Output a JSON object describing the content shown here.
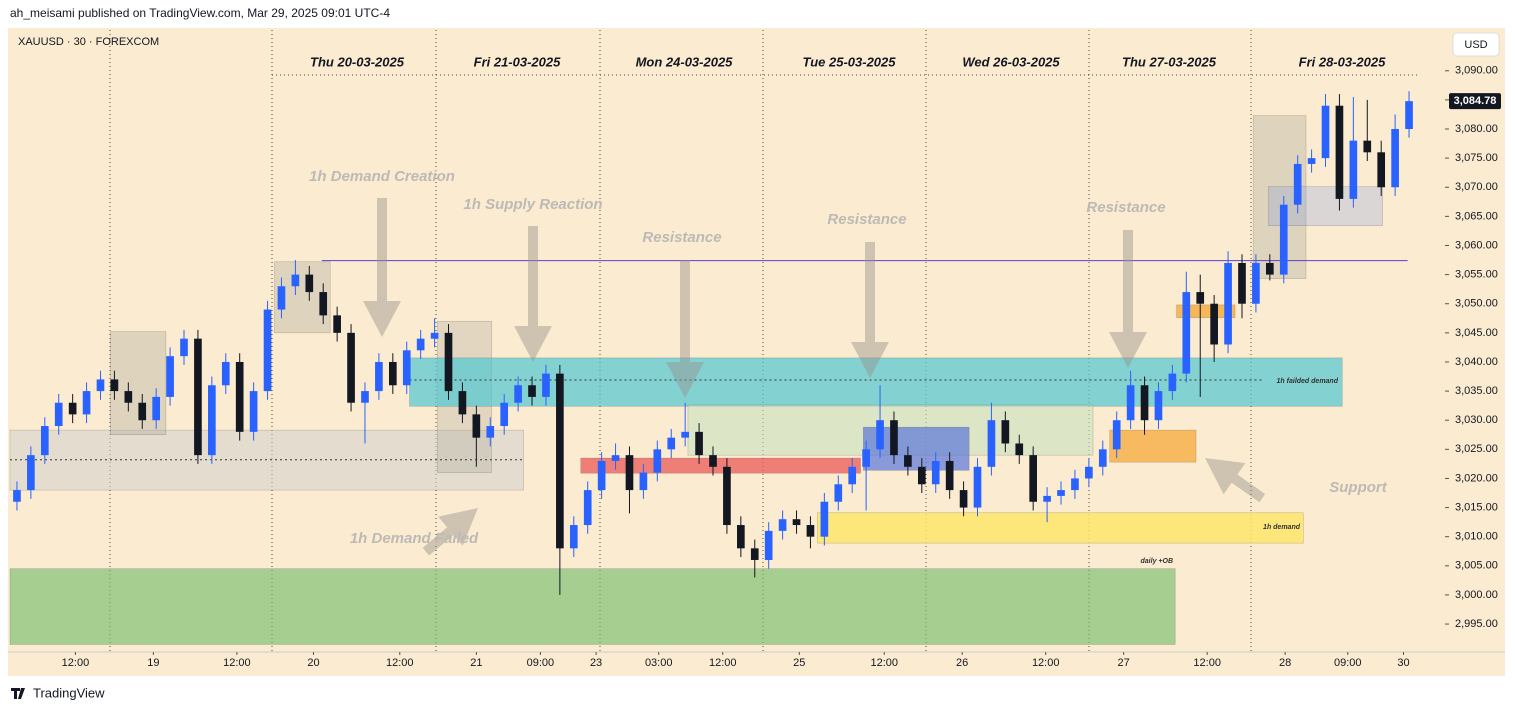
{
  "header": {
    "publisher": "ah_meisami published on TradingView.com, Mar 29, 2025 09:01 UTC-4",
    "footer": "TradingView"
  },
  "chart_data": {
    "type": "candlestick",
    "title": "XAUUSD · 30 · FOREXCOM",
    "currency": "USD",
    "up_color": "#2962ff",
    "down_color": "#131722",
    "day_labels": [
      "Thu 20-03-2025",
      "Fri 21-03-2025",
      "Mon 24-03-2025",
      "Tue 25-03-2025",
      "Wed 26-03-2025",
      "Thu 27-03-2025",
      "Fri 28-03-2025"
    ],
    "last_price": {
      "value": 3084.78,
      "label": "3,084.78"
    },
    "open": [
      3016,
      3018,
      3024,
      3029,
      3033,
      3031,
      3035,
      3037,
      3035,
      3033,
      3030,
      3034,
      3041,
      3044,
      3024,
      3036,
      3040,
      3028,
      3035,
      3049,
      3053,
      3055,
      3052,
      3048,
      3045,
      3033,
      3035,
      3040,
      3036,
      3042,
      3044,
      3045,
      3035,
      3031,
      3027,
      3029,
      3033,
      3036,
      3034,
      3038,
      3008,
      3012,
      3018,
      3023,
      3024,
      3018,
      3021,
      3025,
      3027,
      3028,
      3024,
      3022,
      3012,
      3008,
      3006,
      3011,
      3013,
      3012,
      3010,
      3016,
      3019,
      3022,
      3025,
      3030,
      3024,
      3022,
      3019,
      3023,
      3018,
      3015,
      3022,
      3030,
      3026,
      3024,
      3016,
      3017,
      3018,
      3020,
      3022,
      3025,
      3030,
      3036,
      3030,
      3035,
      3038,
      3052,
      3050,
      3043,
      3057,
      3050,
      3057,
      3055,
      3067,
      3074,
      3075,
      3084,
      3068,
      3078,
      3076,
      3070,
      3080
    ],
    "high": [
      3019.5,
      3025.5,
      3030.5,
      3034.5,
      3034.5,
      3036.5,
      3038.5,
      3038.5,
      3036.5,
      3034.5,
      3035.5,
      3042.5,
      3045.5,
      3045.5,
      3037.5,
      3041.5,
      3041.5,
      3036.5,
      3050.5,
      3054.5,
      3057.5,
      3056.5,
      3053.5,
      3049.5,
      3046.5,
      3036.5,
      3041.5,
      3041.5,
      3043.5,
      3045.5,
      3047.5,
      3046.5,
      3036.5,
      3032.5,
      3030.5,
      3034.5,
      3037.5,
      3037.5,
      3039.5,
      3039.5,
      3013.5,
      3019.5,
      3024.5,
      3026,
      3025.5,
      3022.5,
      3026.5,
      3028.5,
      3033,
      3029.5,
      3025.5,
      3023.5,
      3013.5,
      3009.5,
      3012.5,
      3014.5,
      3014.5,
      3013.5,
      3017.5,
      3020.5,
      3023.5,
      3026.5,
      3036,
      3031.5,
      3025.5,
      3023.5,
      3024.5,
      3024.5,
      3019.5,
      3023.5,
      3033,
      3031.5,
      3027.5,
      3025.5,
      3018.5,
      3019.5,
      3021.5,
      3023.5,
      3026.5,
      3031.5,
      3038.5,
      3037.5,
      3036.5,
      3039.5,
      3055.5,
      3055,
      3051.5,
      3059,
      3058.5,
      3058.5,
      3058.5,
      3068.5,
      3075.5,
      3076.5,
      3086,
      3086,
      3085.5,
      3085,
      3078,
      3082.5,
      3086.5
    ],
    "low": [
      3014.5,
      3016.5,
      3022.5,
      3027.5,
      3029.5,
      3029.5,
      3033.5,
      3033.5,
      3031.5,
      3028.5,
      3028.5,
      3032.5,
      3039.5,
      3022.5,
      3022.5,
      3034.5,
      3026.5,
      3026.5,
      3033.5,
      3047.5,
      3051.5,
      3050.5,
      3046.5,
      3043.5,
      3031.5,
      3026,
      3033.5,
      3034.5,
      3034.5,
      3040.5,
      3042.5,
      3033.5,
      3029.5,
      3022,
      3025.5,
      3027.5,
      3031.5,
      3032.5,
      3032.5,
      3000,
      3006.5,
      3010.5,
      3016.5,
      3021.5,
      3014,
      3016.5,
      3019.5,
      3023.5,
      3025.5,
      3022.5,
      3020.5,
      3010.5,
      3006.5,
      3003,
      3004.5,
      3009.5,
      3010.5,
      3008,
      3008.5,
      3014.5,
      3017.5,
      3014.5,
      3023.5,
      3022.5,
      3020.5,
      3017.5,
      3017.5,
      3016.5,
      3013.5,
      3013.5,
      3020.5,
      3024.5,
      3022.5,
      3014.5,
      3012.5,
      3015.5,
      3016.5,
      3018.5,
      3020.5,
      3023.5,
      3028.5,
      3027.5,
      3028.5,
      3033.5,
      3036.5,
      3034,
      3040,
      3041.5,
      3047.5,
      3048.5,
      3054,
      3053.5,
      3065.5,
      3072.5,
      3073.5,
      3066,
      3066.5,
      3074.5,
      3068.5,
      3068.5,
      3078.5
    ],
    "close": [
      3018,
      3024,
      3029,
      3033,
      3031,
      3035,
      3037,
      3035,
      3033,
      3030,
      3034,
      3041,
      3044,
      3024,
      3036,
      3040,
      3028,
      3035,
      3049,
      3053,
      3055,
      3052,
      3048,
      3045,
      3033,
      3035,
      3040,
      3036,
      3042,
      3044,
      3045,
      3035,
      3031,
      3027,
      3029,
      3033,
      3036,
      3034,
      3038,
      3008,
      3012,
      3018,
      3023,
      3024,
      3018,
      3021,
      3025,
      3027,
      3028,
      3024,
      3022,
      3012,
      3008,
      3006,
      3011,
      3013,
      3012,
      3010,
      3016,
      3019,
      3022,
      3025,
      3030,
      3024,
      3022,
      3019,
      3023,
      3018,
      3015,
      3022,
      3030,
      3026,
      3024,
      3016,
      3017,
      3018,
      3020,
      3022,
      3025,
      3030,
      3036,
      3030,
      3035,
      3038,
      3052,
      3050,
      3043,
      3057,
      3050,
      3057,
      3055,
      3067,
      3074,
      3075,
      3084,
      3068,
      3078,
      3076,
      3070,
      3080,
      3084.78
    ],
    "xlim": [
      0,
      101
    ],
    "xticks": [
      {
        "value": 4.7,
        "label": "12:00"
      },
      {
        "value": 10.3,
        "label": "19"
      },
      {
        "value": 16.3,
        "label": "12:00"
      },
      {
        "value": 21.8,
        "label": "20"
      },
      {
        "value": 28.0,
        "label": "12:00"
      },
      {
        "value": 33.5,
        "label": "21"
      },
      {
        "value": 38.1,
        "label": "09:00"
      },
      {
        "value": 42.1,
        "label": "23"
      },
      {
        "value": 46.6,
        "label": "03:00"
      },
      {
        "value": 51.2,
        "label": "12:00"
      },
      {
        "value": 56.7,
        "label": "25"
      },
      {
        "value": 62.8,
        "label": "12:00"
      },
      {
        "value": 68.4,
        "label": "26"
      },
      {
        "value": 74.4,
        "label": "12:00"
      },
      {
        "value": 80.0,
        "label": "27"
      },
      {
        "value": 86.0,
        "label": "12:00"
      },
      {
        "value": 91.6,
        "label": "28"
      },
      {
        "value": 96.1,
        "label": "09:00"
      },
      {
        "value": 100.1,
        "label": "30"
      }
    ],
    "ylim": [
      2990.2,
      3097
    ],
    "yticks": [
      {
        "value": 2995,
        "label": "2,995.00"
      },
      {
        "value": 3000,
        "label": "3,000.00"
      },
      {
        "value": 3005,
        "label": "3,005.00"
      },
      {
        "value": 3010,
        "label": "3,010.00"
      },
      {
        "value": 3015,
        "label": "3,015.00"
      },
      {
        "value": 3020,
        "label": "3,020.00"
      },
      {
        "value": 3025,
        "label": "3,025.00"
      },
      {
        "value": 3030,
        "label": "3,030.00"
      },
      {
        "value": 3035,
        "label": "3,035.00"
      },
      {
        "value": 3040,
        "label": "3,040.00"
      },
      {
        "value": 3045,
        "label": "3,045.00"
      },
      {
        "value": 3050,
        "label": "3,050.00"
      },
      {
        "value": 3055,
        "label": "3,055.00"
      },
      {
        "value": 3060,
        "label": "3,060.00"
      },
      {
        "value": 3065,
        "label": "3,065.00"
      },
      {
        "value": 3070,
        "label": "3,070.00"
      },
      {
        "value": 3075,
        "label": "3,075.00"
      },
      {
        "value": 3080,
        "label": "3,080.00"
      },
      {
        "value": 3085,
        "label": "3,085.00"
      },
      {
        "value": 3090,
        "label": "3,090.00"
      }
    ],
    "zones": [
      {
        "range": [
          2991.5,
          3004.5
        ],
        "span": [
          0,
          83.7
        ],
        "color": "rgba(120,190,110,0.65)"
      },
      {
        "range": [
          3018.0,
          3028.3
        ],
        "span": [
          0,
          36.9
        ],
        "color": "rgba(210,210,205,0.55)"
      },
      {
        "range": [
          3027.5,
          3045.2
        ],
        "span": [
          7.2,
          11.2
        ],
        "color": "rgba(170,165,155,0.35)"
      },
      {
        "range": [
          3045.0,
          3057.2
        ],
        "span": [
          19.0,
          23.0
        ],
        "color": "rgba(170,165,155,0.35)"
      },
      {
        "range": [
          3021.0,
          3047.0
        ],
        "span": [
          30.7,
          34.6
        ],
        "color": "rgba(170,165,155,0.3)"
      },
      {
        "range": [
          3032.4,
          3040.7
        ],
        "span": [
          28.7,
          95.7
        ],
        "color": "rgba(80,200,210,0.7)"
      },
      {
        "range": [
          3024.0,
          3032.6
        ],
        "span": [
          48.7,
          77.8
        ],
        "color": "rgba(200,225,190,0.6)"
      },
      {
        "range": [
          3020.9,
          3023.5
        ],
        "span": [
          41.0,
          61.1
        ],
        "color": "rgba(235,90,90,0.75)"
      },
      {
        "range": [
          3008.9,
          3014.1
        ],
        "span": [
          58.0,
          92.9
        ],
        "color": "rgba(255,230,100,0.8)"
      },
      {
        "range": [
          3021.4,
          3028.8
        ],
        "span": [
          61.3,
          68.9
        ],
        "color": "rgba(90,120,220,0.7)"
      },
      {
        "range": [
          3022.8,
          3028.3
        ],
        "span": [
          79.0,
          85.2
        ],
        "color": "rgba(245,170,60,0.75)"
      },
      {
        "range": [
          3047.6,
          3049.8
        ],
        "span": [
          83.8,
          88.0
        ],
        "color": "rgba(245,170,60,0.8)"
      },
      {
        "range": [
          3054.3,
          3082.3
        ],
        "span": [
          89.3,
          93.1
        ],
        "color": "rgba(170,165,155,0.35)"
      },
      {
        "range": [
          3063.4,
          3070.1
        ],
        "span": [
          90.4,
          98.6
        ],
        "color": "rgba(120,150,230,0.25)"
      }
    ],
    "levels": [
      {
        "value": 3057.4,
        "span": [
          22.4,
          100.4
        ],
        "color": "#5b3fd1",
        "style": "solid"
      },
      {
        "value": 3036.9,
        "span": [
          28.7,
          90
        ],
        "color": "#333",
        "style": "dotted"
      },
      {
        "value": 3023.2,
        "span": [
          0,
          36.9
        ],
        "color": "#333",
        "style": "dotted"
      }
    ],
    "annotations": [
      "1h Demand Creation",
      "1h Supply Reaction",
      "Resistance",
      "Resistance",
      "Resistance",
      "1h Demand Failed",
      "Support",
      "1h failded demand",
      "1h demand",
      "daily +OB"
    ]
  }
}
